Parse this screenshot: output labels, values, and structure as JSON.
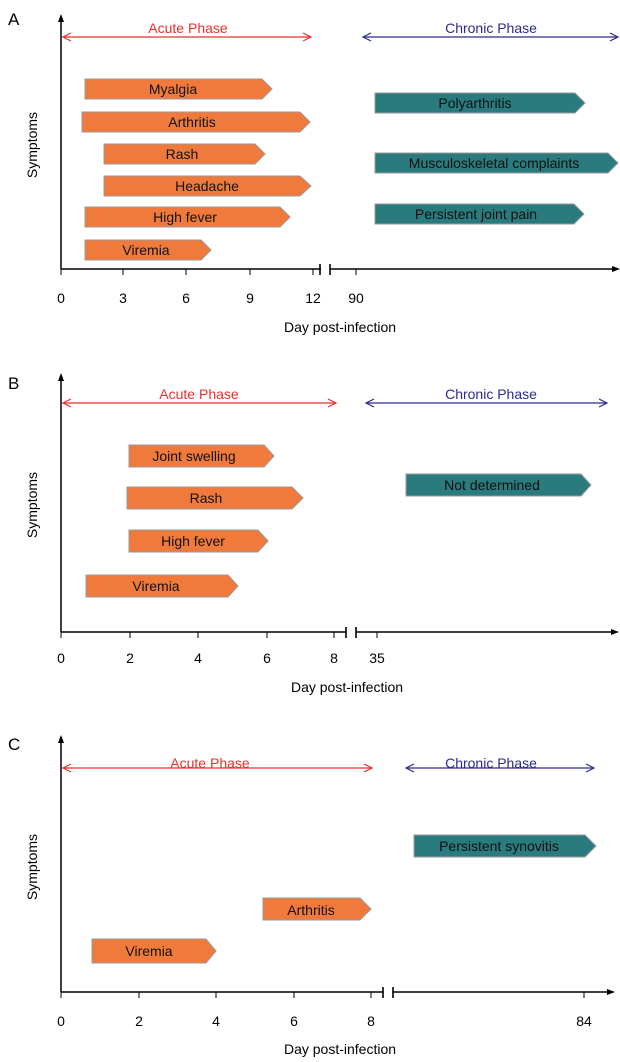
{
  "colors": {
    "acute_bar": "#f07a3c",
    "chronic_bar": "#2a7b7e",
    "bar_outline": "#9a9a9a",
    "acute_phase": "#e8312c",
    "chronic_phase": "#2b2b8c",
    "axis": "#000000"
  },
  "panels": [
    {
      "letter": "A",
      "y_label": "Symptoms",
      "x_label": "Day post-infection",
      "acute_phase_label": "Acute Phase",
      "chronic_phase_label": "Chronic Phase",
      "acute_ticks": [
        "0",
        "3",
        "6",
        "9",
        "12"
      ],
      "chronic_ticks": [
        "90"
      ],
      "acute_bars": [
        {
          "label": "Myalgia",
          "start": 1,
          "end": 10
        },
        {
          "label": "Arthritis",
          "start": 1,
          "end": 12
        },
        {
          "label": "Rash",
          "start": 2,
          "end": 10
        },
        {
          "label": "Headache",
          "start": 2,
          "end": 12
        },
        {
          "label": "High fever",
          "start": 1,
          "end": 11
        },
        {
          "label": "Viremia",
          "start": 1,
          "end": 7
        }
      ],
      "chronic_bars": [
        {
          "label": "Polyarthritis"
        },
        {
          "label": "Musculoskeletal complaints"
        },
        {
          "label": "Persistent joint pain"
        }
      ]
    },
    {
      "letter": "B",
      "y_label": "Symptoms",
      "x_label": "Day post-infection",
      "acute_phase_label": "Acute Phase",
      "chronic_phase_label": "Chronic Phase",
      "acute_ticks": [
        "0",
        "2",
        "4",
        "6",
        "8"
      ],
      "chronic_ticks": [
        "35"
      ],
      "acute_bars": [
        {
          "label": "Joint swelling",
          "start": 2,
          "end": 6
        },
        {
          "label": "Rash",
          "start": 2,
          "end": 7
        },
        {
          "label": "High fever",
          "start": 2,
          "end": 6
        },
        {
          "label": "Viremia",
          "start": 1,
          "end": 5
        }
      ],
      "chronic_bars": [
        {
          "label": "Not determined"
        }
      ]
    },
    {
      "letter": "C",
      "y_label": "Symptoms",
      "x_label": "Day post-infection",
      "acute_phase_label": "Acute Phase",
      "chronic_phase_label": "Chronic Phase",
      "acute_ticks": [
        "0",
        "2",
        "4",
        "6",
        "8"
      ],
      "chronic_ticks": [
        "84"
      ],
      "acute_bars": [
        {
          "label": "Arthritis",
          "start": 5,
          "end": 8
        },
        {
          "label": "Viremia",
          "start": 1,
          "end": 4
        }
      ],
      "chronic_bars": [
        {
          "label": "Persistent synovitis"
        }
      ]
    }
  ]
}
